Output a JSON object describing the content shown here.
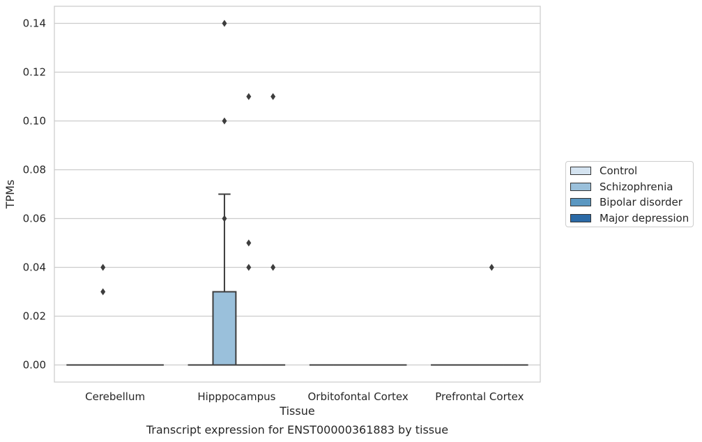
{
  "chart_data": {
    "type": "box",
    "title": "Transcript expression for ENST00000361883 by tissue",
    "xlabel": "Tissue",
    "ylabel": "TPMs",
    "categories": [
      "Cerebellum",
      "Hipppocampus",
      "Orbitofontal Cortex",
      "Prefrontal Cortex"
    ],
    "ylim": [
      -0.007,
      0.147
    ],
    "yticks": [
      0.0,
      0.02,
      0.04,
      0.06,
      0.08,
      0.1,
      0.12,
      0.14
    ],
    "ytick_labels": [
      "0.00",
      "0.02",
      "0.04",
      "0.06",
      "0.08",
      "0.10",
      "0.12",
      "0.14"
    ],
    "grid": true,
    "legend_position": "right",
    "series": [
      {
        "name": "Control",
        "color": "#d4e3f0",
        "boxes": [
          {
            "category": "Cerebellum",
            "q1": 0,
            "median": 0,
            "q3": 0,
            "whislo": 0,
            "whishi": 0,
            "fliers": []
          },
          {
            "category": "Hipppocampus",
            "q1": 0,
            "median": 0,
            "q3": 0,
            "whislo": 0,
            "whishi": 0,
            "fliers": []
          },
          {
            "category": "Orbitofontal Cortex",
            "q1": 0,
            "median": 0,
            "q3": 0,
            "whislo": 0,
            "whishi": 0,
            "fliers": []
          },
          {
            "category": "Prefrontal Cortex",
            "q1": 0,
            "median": 0,
            "q3": 0,
            "whislo": 0,
            "whishi": 0,
            "fliers": []
          }
        ]
      },
      {
        "name": "Schizophrenia",
        "color": "#9ac0db",
        "boxes": [
          {
            "category": "Cerebellum",
            "q1": 0,
            "median": 0,
            "q3": 0,
            "whislo": 0,
            "whishi": 0,
            "fliers": [
              0.04,
              0.03
            ]
          },
          {
            "category": "Hipppocampus",
            "q1": 0,
            "median": 0,
            "q3": 0.03,
            "whislo": 0,
            "whishi": 0.07,
            "fliers": [
              0.14,
              0.1,
              0.06
            ]
          },
          {
            "category": "Orbitofontal Cortex",
            "q1": 0,
            "median": 0,
            "q3": 0,
            "whislo": 0,
            "whishi": 0,
            "fliers": []
          },
          {
            "category": "Prefrontal Cortex",
            "q1": 0,
            "median": 0,
            "q3": 0,
            "whislo": 0,
            "whishi": 0,
            "fliers": []
          }
        ]
      },
      {
        "name": "Bipolar disorder",
        "color": "#5a97c1",
        "boxes": [
          {
            "category": "Cerebellum",
            "q1": 0,
            "median": 0,
            "q3": 0,
            "whislo": 0,
            "whishi": 0,
            "fliers": []
          },
          {
            "category": "Hipppocampus",
            "q1": 0,
            "median": 0,
            "q3": 0,
            "whislo": 0,
            "whishi": 0,
            "fliers": [
              0.11,
              0.05,
              0.04
            ]
          },
          {
            "category": "Orbitofontal Cortex",
            "q1": 0,
            "median": 0,
            "q3": 0,
            "whislo": 0,
            "whishi": 0,
            "fliers": []
          },
          {
            "category": "Prefrontal Cortex",
            "q1": 0,
            "median": 0,
            "q3": 0,
            "whislo": 0,
            "whishi": 0,
            "fliers": [
              0.04
            ]
          }
        ]
      },
      {
        "name": "Major depression",
        "color": "#2b6aa6",
        "boxes": [
          {
            "category": "Cerebellum",
            "q1": 0,
            "median": 0,
            "q3": 0,
            "whislo": 0,
            "whishi": 0,
            "fliers": []
          },
          {
            "category": "Hipppocampus",
            "q1": 0,
            "median": 0,
            "q3": 0,
            "whislo": 0,
            "whishi": 0,
            "fliers": [
              0.11,
              0.04
            ]
          },
          {
            "category": "Orbitofontal Cortex",
            "q1": 0,
            "median": 0,
            "q3": 0,
            "whislo": 0,
            "whishi": 0,
            "fliers": []
          },
          {
            "category": "Prefrontal Cortex",
            "q1": 0,
            "median": 0,
            "q3": 0,
            "whislo": 0,
            "whishi": 0,
            "fliers": []
          }
        ]
      }
    ]
  },
  "legend": {
    "items": [
      {
        "label": "Control",
        "color": "#d4e3f0"
      },
      {
        "label": "Schizophrenia",
        "color": "#9ac0db"
      },
      {
        "label": "Bipolar disorder",
        "color": "#5a97c1"
      },
      {
        "label": "Major depression",
        "color": "#2b6aa6"
      }
    ]
  }
}
